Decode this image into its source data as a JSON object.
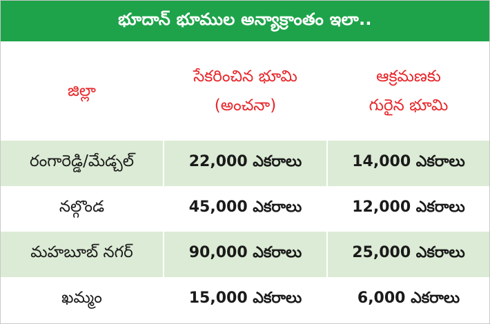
{
  "title": "భూదాన్ భూముల అన్యాక్రాంతం ఇలా..",
  "headers": {
    "district": "జిల్లా",
    "collected": [
      "సేకరించిన భూమి",
      "(అంచనా)"
    ],
    "encroached": [
      "ఆక్రమణకు",
      "గురైన భూమి"
    ]
  },
  "rows": [
    {
      "district": "రంగారెడ్డి/మేడ్చల్",
      "collected": "22,000 ఎకరాలు",
      "encroached": "14,000 ఎకరాలు"
    },
    {
      "district": "నల్గొండ",
      "collected": "45,000 ఎకరాలు",
      "encroached": "12,000 ఎకరాలు"
    },
    {
      "district": "మహబూబ్ నగర్",
      "collected": "90,000 ఎకరాలు",
      "encroached": "25,000 ఎకరాలు"
    },
    {
      "district": "ఖమ్మం",
      "collected": "15,000 ఎకరాలు",
      "encroached": "6,000 ఎకరాలు"
    }
  ],
  "colors": {
    "title_bg": "#1ea34a",
    "header_text": "#e8262a",
    "shaded_row": "#dcebd5"
  }
}
